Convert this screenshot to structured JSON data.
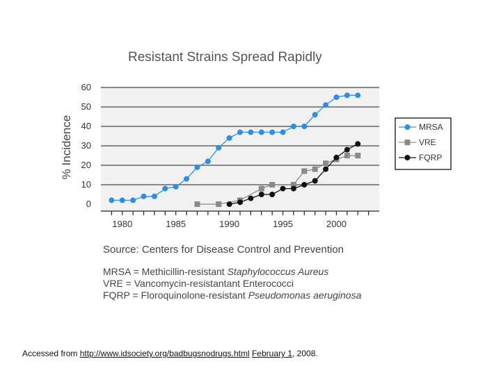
{
  "chart_data": {
    "type": "line",
    "title": "Resistant Strains Spread Rapidly",
    "xlabel": "",
    "ylabel": "% Incidence",
    "xlim": [
      1978,
      2004
    ],
    "ylim": [
      0,
      60
    ],
    "x_ticks": [
      "1980",
      "1985",
      "1990",
      "1995",
      "2000"
    ],
    "y_ticks": [
      "0",
      "10",
      "20",
      "30",
      "40",
      "50",
      "60"
    ],
    "grid": true,
    "legend_position": "right",
    "series": [
      {
        "name": "MRSA",
        "color": "#2f8ee3",
        "marker": "circle",
        "points": [
          [
            1979,
            2
          ],
          [
            1980,
            2
          ],
          [
            1981,
            2
          ],
          [
            1982,
            4
          ],
          [
            1983,
            4
          ],
          [
            1984,
            8
          ],
          [
            1985,
            9
          ],
          [
            1986,
            13
          ],
          [
            1987,
            19
          ],
          [
            1988,
            22
          ],
          [
            1989,
            29
          ],
          [
            1990,
            34
          ],
          [
            1991,
            37
          ],
          [
            1992,
            37
          ],
          [
            1993,
            37
          ],
          [
            1994,
            37
          ],
          [
            1995,
            37
          ],
          [
            1996,
            40
          ],
          [
            1997,
            40
          ],
          [
            1998,
            46
          ],
          [
            1999,
            51
          ],
          [
            2000,
            55
          ],
          [
            2001,
            56
          ],
          [
            2002,
            56
          ]
        ]
      },
      {
        "name": "VRE",
        "color": "#8a8a8a",
        "marker": "square",
        "points": [
          [
            1987,
            0
          ],
          [
            1989,
            0
          ],
          [
            1991,
            2
          ],
          [
            1993,
            8
          ],
          [
            1994,
            10
          ],
          [
            1996,
            10
          ],
          [
            1997,
            17
          ],
          [
            1998,
            18
          ],
          [
            1999,
            21
          ],
          [
            2000,
            23
          ],
          [
            2001,
            25
          ],
          [
            2002,
            25
          ]
        ]
      },
      {
        "name": "FQRP",
        "color": "#111111",
        "marker": "circle",
        "points": [
          [
            1990,
            0
          ],
          [
            1991,
            1
          ],
          [
            1992,
            3
          ],
          [
            1993,
            5
          ],
          [
            1994,
            5
          ],
          [
            1995,
            8
          ],
          [
            1996,
            8
          ],
          [
            1997,
            10
          ],
          [
            1998,
            12
          ],
          [
            1999,
            18
          ],
          [
            2000,
            24
          ],
          [
            2001,
            28
          ],
          [
            2002,
            31
          ]
        ]
      }
    ]
  },
  "source_text": "Source: Centers for Disease Control and Prevention",
  "definitions": [
    {
      "abbr": "MRSA = Methicillin-resistant ",
      "name": "Staphylococcus Aureus",
      "italic": true
    },
    {
      "abbr": "VRE = Vancomycin-resistantant Enterococci",
      "name": "",
      "italic": false
    },
    {
      "abbr": "FQRP = Floroquinolone-resistant ",
      "name": "Pseudomonas aeruginosa",
      "italic": true
    }
  ],
  "footer": {
    "prefix": "Accessed from ",
    "url": "http://www.idsociety.org/badbugsnodrugs.html",
    "sep": " ",
    "date_link": "February 1",
    "suffix": ", 2008."
  }
}
